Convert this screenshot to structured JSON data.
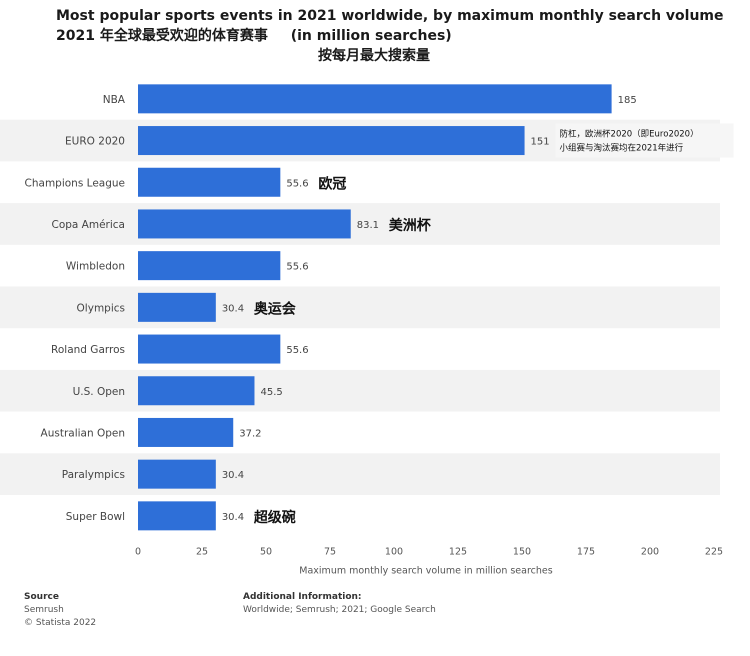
{
  "chart_data": {
    "type": "bar",
    "orientation": "horizontal",
    "title": "Most popular sports events in 2021 worldwide, by maximum monthly search volume",
    "title_cn": "2021 年全球最受欢迎的体育赛事",
    "subtitle": "(in million searches)",
    "subtitle_cn": "按每月最大搜索量",
    "categories": [
      "NBA",
      "EURO 2020",
      "Champions League",
      "Copa América",
      "Wimbledon",
      "Olympics",
      "Roland Garros",
      "U.S. Open",
      "Australian Open",
      "Paralympics",
      "Super Bowl"
    ],
    "values": [
      185,
      151,
      55.6,
      83.1,
      55.6,
      30.4,
      55.6,
      45.5,
      37.2,
      30.4,
      30.4
    ],
    "value_labels": [
      "185",
      "151",
      "55.6",
      "83.1",
      "55.6",
      "30.4",
      "55.6",
      "45.5",
      "37.2",
      "30.4",
      "30.4"
    ],
    "xlabel": "Maximum monthly search volume in million searches",
    "xlim": [
      0,
      225
    ],
    "xticks": [
      "0",
      "25",
      "50",
      "75",
      "100",
      "125",
      "150",
      "175",
      "200",
      "225"
    ],
    "bar_color": "#2e6fd8",
    "annotations": [
      {
        "category": "EURO 2020",
        "lines": [
          "防杠，欧洲杯2020（即Euro2020）",
          "小组赛与淘汰赛均在2021年进行"
        ]
      },
      {
        "category": "Champions League",
        "lines": [
          "欧冠"
        ]
      },
      {
        "category": "Copa América",
        "lines": [
          "美洲杯"
        ]
      },
      {
        "category": "Olympics",
        "lines": [
          "奥运会"
        ]
      },
      {
        "category": "Super Bowl",
        "lines": [
          "超级碗"
        ]
      }
    ]
  },
  "footer": {
    "source_heading": "Source",
    "source_lines": [
      "Semrush",
      "© Statista 2022"
    ],
    "info_heading": "Additional Information:",
    "info_text": "Worldwide; Semrush; 2021; Google Search"
  }
}
